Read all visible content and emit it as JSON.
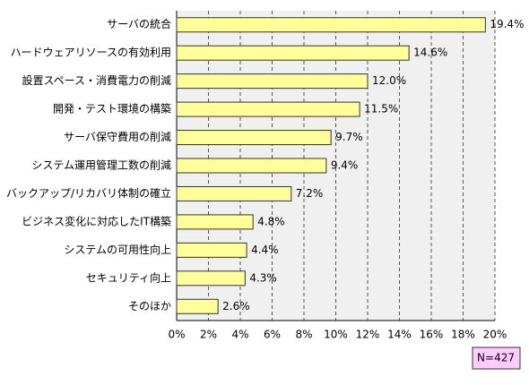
{
  "chart_data": {
    "type": "bar",
    "orientation": "horizontal",
    "categories": [
      "サーバの統合",
      "ハードウェアリソースの有効利用",
      "設置スペース・消費電力の削減",
      "開発・テスト環境の構築",
      "サーバ保守費用の削減",
      "システム運用管理工数の削減",
      "バックアップ/リカバリ体制の確立",
      "ビジネス変化に対応したIT構築",
      "システムの可用性向上",
      "セキュリティ向上",
      "そのほか"
    ],
    "values": [
      19.4,
      14.6,
      12.0,
      11.5,
      9.7,
      9.4,
      7.2,
      4.8,
      4.4,
      4.3,
      2.6
    ],
    "value_labels": [
      "19.4%",
      "14.6%",
      "12.0%",
      "11.5%",
      "9.7%",
      "9.4%",
      "7.2%",
      "4.8%",
      "4.4%",
      "4.3%",
      "2.6%"
    ],
    "color": "#ffff99",
    "xlim": [
      0,
      20
    ],
    "xticks": [
      {
        "value": 0,
        "label": "0%"
      },
      {
        "value": 2,
        "label": "2%"
      },
      {
        "value": 4,
        "label": "4%"
      },
      {
        "value": 6,
        "label": "6%"
      },
      {
        "value": 8,
        "label": "8%"
      },
      {
        "value": 10,
        "label": "10%"
      },
      {
        "value": 12,
        "label": "12%"
      },
      {
        "value": 14,
        "label": "14%"
      },
      {
        "value": 16,
        "label": "16%"
      },
      {
        "value": 18,
        "label": "18%"
      },
      {
        "value": 20,
        "label": "20%"
      }
    ],
    "grid": true,
    "annotation": "N=427"
  }
}
